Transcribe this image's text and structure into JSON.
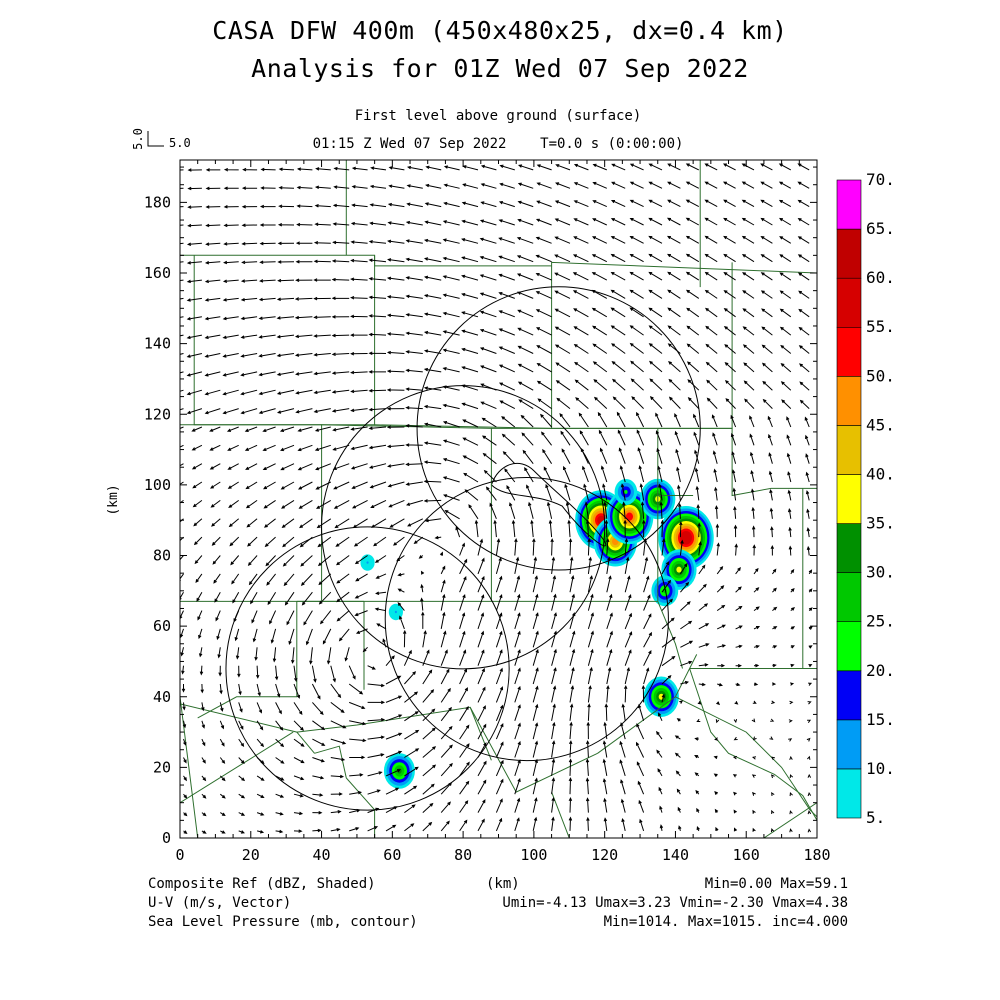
{
  "chart_data": {
    "type": "heatmap",
    "title": "CASA DFW 400m (450x480x25, dx=0.4 km)",
    "subtitle": "Analysis for 01Z Wed 07 Sep 2022",
    "level_label": "First level above ground (surface)",
    "time_label": "01:15 Z Wed 07 Sep 2022    T=0.0 s (0:00:00)",
    "vector_ref_value": "5.0",
    "vector_ref_label": "5.0",
    "xlabel": "(km)",
    "ylabel": "(km)",
    "xlim": [
      0,
      180
    ],
    "ylim": [
      0,
      192
    ],
    "x_ticks": [
      "0",
      "20",
      "40",
      "60",
      "80",
      "100",
      "120",
      "140",
      "160",
      "180"
    ],
    "y_ticks": [
      "0",
      "20",
      "40",
      "60",
      "80",
      "100",
      "120",
      "140",
      "160",
      "180"
    ],
    "colorbar": {
      "levels": [
        "5.",
        "10.",
        "15.",
        "20.",
        "25.",
        "30.",
        "35.",
        "40.",
        "45.",
        "50.",
        "55.",
        "60.",
        "65.",
        "70."
      ],
      "colors": [
        "#00e8e8",
        "#009cf5",
        "#0000f6",
        "#00ff00",
        "#00c800",
        "#009000",
        "#ffff00",
        "#e7c000",
        "#ff9000",
        "#ff0000",
        "#d60000",
        "#c00000",
        "#ff00ff"
      ]
    },
    "reflectivity_cells": [
      {
        "x": 119,
        "y": 90,
        "peak_dbz": 55
      },
      {
        "x": 123,
        "y": 84,
        "peak_dbz": 45
      },
      {
        "x": 127,
        "y": 91,
        "peak_dbz": 50
      },
      {
        "x": 126,
        "y": 98,
        "peak_dbz": 20
      },
      {
        "x": 135,
        "y": 96,
        "peak_dbz": 35
      },
      {
        "x": 143,
        "y": 85,
        "peak_dbz": 59.1
      },
      {
        "x": 141,
        "y": 76,
        "peak_dbz": 35
      },
      {
        "x": 137,
        "y": 70,
        "peak_dbz": 25
      },
      {
        "x": 136,
        "y": 40,
        "peak_dbz": 35
      },
      {
        "x": 62,
        "y": 19,
        "peak_dbz": 30
      },
      {
        "x": 53,
        "y": 78,
        "peak_dbz": 10
      },
      {
        "x": 61,
        "y": 64,
        "peak_dbz": 10
      }
    ],
    "radar_range_rings": [
      {
        "cx": 107,
        "cy": 116,
        "r_km": 40
      },
      {
        "cx": 80,
        "cy": 88,
        "r_km": 40
      },
      {
        "cx": 98,
        "cy": 62,
        "r_km": 40
      },
      {
        "cx": 53,
        "cy": 48,
        "r_km": 40
      }
    ],
    "footer": {
      "left1": "Composite Ref (dBZ, Shaded)",
      "left2": "U-V (m/s, Vector)",
      "left3": "Sea Level Pressure (mb, contour)",
      "center1": "(km)",
      "right1": "Min=0.00 Max=59.1",
      "right2": "Umin=-4.13 Umax=3.23 Vmin=-2.30 Vmax=4.38",
      "right3": "Min=1014. Max=1015. inc=4.000"
    },
    "field_stats": {
      "ref_min": 0.0,
      "ref_max": 59.1,
      "umin": -4.13,
      "umax": 3.23,
      "vmin": -2.3,
      "vmax": 4.38,
      "slp_min": 1014,
      "slp_max": 1015,
      "slp_inc": 4.0
    },
    "colors": {
      "county_lines": "#2e6f2e",
      "vectors": "#000000",
      "rings": "#000000"
    }
  }
}
